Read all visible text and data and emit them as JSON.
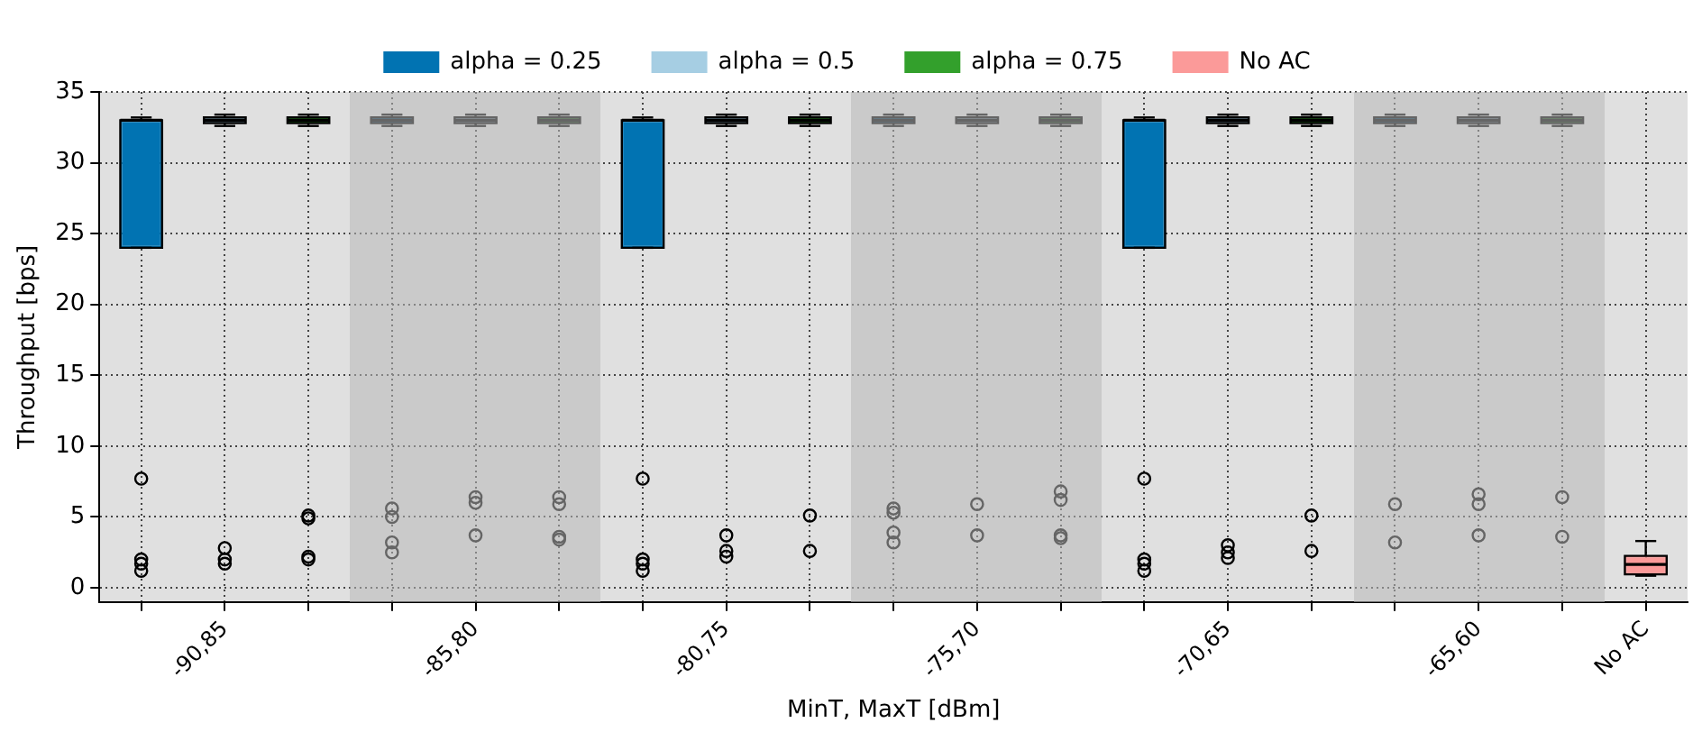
{
  "chart_data": {
    "type": "box",
    "xlabel": "MinT, MaxT [dBm]",
    "ylabel": "Throughput [bps]",
    "categories": [
      null,
      "-90,85",
      null,
      null,
      "-85,80",
      null,
      null,
      "-80,75",
      null,
      null,
      "-75,70",
      null,
      null,
      "-70,65",
      null,
      null,
      "-65,60",
      null,
      "No AC"
    ],
    "ylim": [
      -1,
      35
    ],
    "yticks": [
      0,
      5,
      10,
      15,
      20,
      25,
      30,
      35
    ],
    "grid": true,
    "legend": "top",
    "series": [
      {
        "name": "alpha = 0.25",
        "color": "#0173b2",
        "boxes": [
          {
            "low": 24,
            "q1": 24,
            "median": 33,
            "q3": 33,
            "high": 33.2,
            "outliers": [
              7.7,
              2.0,
              1.7,
              1.2
            ]
          },
          null,
          null,
          {
            "low": 32.6,
            "q1": 32.8,
            "median": 33,
            "q3": 33.2,
            "high": 33.4,
            "outliers": [
              5.6,
              5.0,
              3.2,
              2.5
            ]
          },
          null,
          null,
          {
            "low": 24,
            "q1": 24,
            "median": 33,
            "q3": 33,
            "high": 33.2,
            "outliers": [
              7.7,
              2.0,
              1.7,
              1.2
            ]
          },
          null,
          null,
          {
            "low": 32.6,
            "q1": 32.8,
            "median": 33,
            "q3": 33.2,
            "high": 33.4,
            "outliers": [
              5.6,
              5.3,
              3.9,
              3.2
            ]
          },
          null,
          null,
          {
            "low": 24,
            "q1": 24,
            "median": 33,
            "q3": 33,
            "high": 33.2,
            "outliers": [
              7.7,
              2.0,
              1.7,
              1.2
            ]
          },
          null,
          null,
          {
            "low": 32.6,
            "q1": 32.8,
            "median": 33,
            "q3": 33.2,
            "high": 33.4,
            "outliers": [
              5.9,
              3.2
            ]
          },
          null,
          null,
          null
        ]
      },
      {
        "name": "alpha = 0.5",
        "color": "#a6cee3",
        "boxes": [
          null,
          {
            "low": 32.6,
            "q1": 32.8,
            "median": 33,
            "q3": 33.2,
            "high": 33.4,
            "outliers": [
              2.8,
              2.0,
              1.7
            ]
          },
          null,
          null,
          {
            "low": 32.6,
            "q1": 32.8,
            "median": 33,
            "q3": 33.2,
            "high": 33.4,
            "outliers": [
              6.4,
              6.0,
              3.7
            ]
          },
          null,
          null,
          {
            "low": 32.6,
            "q1": 32.8,
            "median": 33,
            "q3": 33.2,
            "high": 33.4,
            "outliers": [
              3.7,
              2.6,
              2.2
            ]
          },
          null,
          null,
          {
            "low": 32.6,
            "q1": 32.8,
            "median": 33,
            "q3": 33.2,
            "high": 33.4,
            "outliers": [
              5.9,
              3.7
            ]
          },
          null,
          null,
          {
            "low": 32.6,
            "q1": 32.8,
            "median": 33,
            "q3": 33.2,
            "high": 33.4,
            "outliers": [
              3.0,
              2.5,
              2.1
            ]
          },
          null,
          null,
          {
            "low": 32.6,
            "q1": 32.8,
            "median": 33,
            "q3": 33.2,
            "high": 33.4,
            "outliers": [
              6.6,
              5.9,
              3.7
            ]
          },
          null,
          null
        ]
      },
      {
        "name": "alpha = 0.75",
        "color": "#33a02c",
        "boxes": [
          null,
          null,
          {
            "low": 32.6,
            "q1": 32.8,
            "median": 33,
            "q3": 33.2,
            "high": 33.4,
            "outliers": [
              5.1,
              4.9,
              2.2,
              2.0
            ]
          },
          null,
          null,
          {
            "low": 32.6,
            "q1": 32.8,
            "median": 33,
            "q3": 33.2,
            "high": 33.4,
            "outliers": [
              6.4,
              5.9,
              3.6,
              3.4
            ]
          },
          null,
          null,
          {
            "low": 32.6,
            "q1": 32.8,
            "median": 33,
            "q3": 33.2,
            "high": 33.4,
            "outliers": [
              5.1,
              2.6
            ]
          },
          null,
          null,
          {
            "low": 32.6,
            "q1": 32.8,
            "median": 33,
            "q3": 33.2,
            "high": 33.4,
            "outliers": [
              6.8,
              6.2,
              3.7,
              3.5
            ]
          },
          null,
          null,
          {
            "low": 32.6,
            "q1": 32.8,
            "median": 33,
            "q3": 33.2,
            "high": 33.4,
            "outliers": [
              5.1,
              2.6
            ]
          },
          null,
          null,
          {
            "low": 32.6,
            "q1": 32.8,
            "median": 33,
            "q3": 33.2,
            "high": 33.4,
            "outliers": [
              6.4,
              3.6
            ]
          },
          null
        ]
      },
      {
        "name": "No AC",
        "color": "#fb9a99",
        "boxes": [
          null,
          null,
          null,
          null,
          null,
          null,
          null,
          null,
          null,
          null,
          null,
          null,
          null,
          null,
          null,
          null,
          null,
          null,
          {
            "low": 0.85,
            "q1": 0.95,
            "median": 1.65,
            "q3": 2.25,
            "high": 3.3
          }
        ]
      }
    ]
  }
}
